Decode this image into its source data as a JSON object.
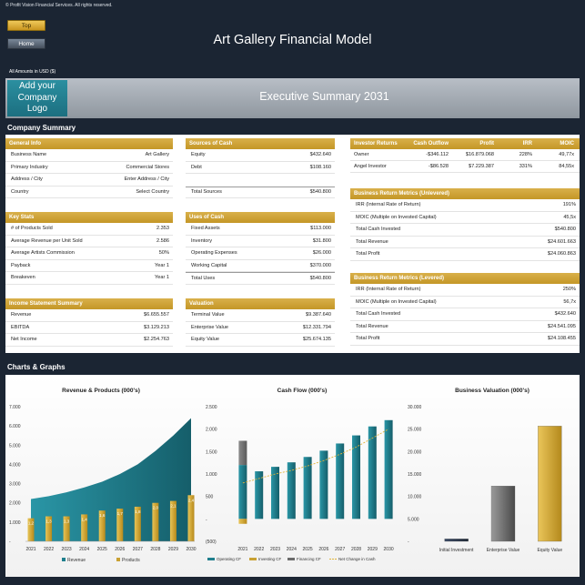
{
  "header": {
    "copyright": "© Profit Vision Financial Services. All rights reserved.",
    "top_button": "Top",
    "home_button": "Home",
    "title": "Art Gallery Financial Model",
    "amounts_note": "All Amounts in  USD ($)"
  },
  "banner": {
    "logo_text": "Add your Company Logo",
    "title": "Executive Summary 2031"
  },
  "sections": {
    "company_summary": "Company Summary",
    "charts": "Charts & Graphs"
  },
  "general_info": {
    "title": "General Info",
    "rows": [
      {
        "label": "Business Name",
        "value": "Art Gallery"
      },
      {
        "label": "Primary Industry",
        "value": "Commercial Stores"
      },
      {
        "label": "Address / City",
        "value": "Enter Address / City"
      },
      {
        "label": "Country",
        "value": "Select Country"
      }
    ]
  },
  "key_stats": {
    "title": "Key Stats",
    "rows": [
      {
        "label": "# of Products Sold",
        "value": "2.353"
      },
      {
        "label": "Average Revenue per Unit Sold",
        "value": "2.586"
      },
      {
        "label": "Average Artists Commission",
        "value": "50%"
      },
      {
        "label": "Payback",
        "value": "Year 1"
      },
      {
        "label": "Breakeven",
        "value": "Year 1"
      }
    ]
  },
  "income_statement": {
    "title": "Income Statement Summary",
    "rows": [
      {
        "label": "Revenue",
        "value": "$6.655.557"
      },
      {
        "label": "EBITDA",
        "value": "$3.129.213"
      },
      {
        "label": "Net Income",
        "value": "$2.254.763"
      }
    ]
  },
  "sources_of_cash": {
    "title": "Sources of Cash",
    "rows": [
      {
        "label": "Equity",
        "value": "$432.640"
      },
      {
        "label": "Debt",
        "value": "$108.160"
      }
    ],
    "total": {
      "label": "Total Sources",
      "value": "$540.800"
    }
  },
  "uses_of_cash": {
    "title": "Uses of Cash",
    "rows": [
      {
        "label": "Fixed Assets",
        "value": "$113.000"
      },
      {
        "label": "Inventory",
        "value": "$31.800"
      },
      {
        "label": "Operating Expenses",
        "value": "$26.000"
      },
      {
        "label": "Working Capital",
        "value": "$370.000"
      }
    ],
    "total": {
      "label": "Total Uses",
      "value": "$540.800"
    }
  },
  "valuation": {
    "title": "Valuation",
    "rows": [
      {
        "label": "Terminal Value",
        "value": "$9.387.640"
      },
      {
        "label": "Enterprise Value",
        "value": "$12.331.794"
      },
      {
        "label": "Equity Value",
        "value": "$25.674.135"
      }
    ]
  },
  "investor_returns": {
    "headers": [
      "Investor Returns",
      "Cash Outflow",
      "Profit",
      "IRR",
      "MOIC"
    ],
    "rows": [
      [
        "Owner",
        "-$346.112",
        "$16.879.068",
        "228%",
        "49,77x"
      ],
      [
        "Angel Investor",
        "-$86.528",
        "$7.229.387",
        "331%",
        "84,55x"
      ]
    ]
  },
  "return_unlevered": {
    "title": "Business Return Metrics (Unlevered)",
    "rows": [
      {
        "label": "IRR (Internal Rate of Return)",
        "value": "191%"
      },
      {
        "label": "MOIC (Multiple on Invested Capital)",
        "value": "45,5x"
      },
      {
        "label": "Total Cash Invested",
        "value": "$540.800"
      },
      {
        "label": "Total Revenue",
        "value": "$24.601.663"
      },
      {
        "label": "Total Profit",
        "value": "$24.060.863"
      }
    ]
  },
  "return_levered": {
    "title": "Business Return Metrics (Levered)",
    "rows": [
      {
        "label": "IRR (Internal Rate of Return)",
        "value": "250%"
      },
      {
        "label": "MOIC (Multiple on Invested Capital)",
        "value": "56,7x"
      },
      {
        "label": "Total Cash Invested",
        "value": "$432.640"
      },
      {
        "label": "Total Revenue",
        "value": "$24.541.095"
      },
      {
        "label": "Total Profit",
        "value": "$24.108.455"
      }
    ]
  },
  "colors": {
    "gold": "#c9a133",
    "teal": "#1f7f8d",
    "navy": "#1b2533",
    "grey": "#6b6b6b"
  },
  "chart_data": [
    {
      "type": "area",
      "title": "Revenue & Products (000's)",
      "categories": [
        "2021",
        "2022",
        "2023",
        "2024",
        "2025",
        "2026",
        "2027",
        "2028",
        "2029",
        "2030"
      ],
      "ylim": [
        0,
        7000
      ],
      "yticks": [
        "-",
        "1.000",
        "2.000",
        "3.000",
        "4.000",
        "5.000",
        "6.000",
        "7.000"
      ],
      "series": [
        {
          "name": "Revenue",
          "values": [
            2200,
            2350,
            2550,
            2800,
            3100,
            3500,
            4000,
            4700,
            5500,
            6400
          ]
        },
        {
          "name": "Products",
          "values": [
            1.2,
            1.3,
            1.3,
            1.4,
            1.6,
            1.7,
            1.8,
            2.0,
            2.1,
            2.4
          ]
        }
      ],
      "bar_labels": [
        "1,2",
        "1,3",
        "1,3",
        "1,4",
        "1,6",
        "1,7",
        "1,8",
        "2,0",
        "2,1",
        "2,4"
      ]
    },
    {
      "type": "bar",
      "title": "Cash Flow (000's)",
      "categories": [
        "2021",
        "2022",
        "2023",
        "2024",
        "2025",
        "2026",
        "2027",
        "2028",
        "2029",
        "2030"
      ],
      "ylim": [
        -500,
        2500
      ],
      "yticks": [
        "(500)",
        "-",
        "500",
        "1.000",
        "1.500",
        "2.000",
        "2.500"
      ],
      "series": [
        {
          "name": "Operating CF",
          "values": [
            1200,
            1060,
            1160,
            1260,
            1380,
            1520,
            1680,
            1860,
            2060,
            2200
          ]
        },
        {
          "name": "Investing CF",
          "values": [
            -110,
            0,
            0,
            0,
            0,
            0,
            0,
            0,
            0,
            0
          ]
        },
        {
          "name": "Financing CF",
          "values": [
            540,
            0,
            0,
            0,
            0,
            0,
            0,
            0,
            0,
            0
          ]
        },
        {
          "name": "Net Change in Cash",
          "values": [
            800,
            900,
            1000,
            1080,
            1180,
            1300,
            1440,
            1600,
            1800,
            2000
          ]
        }
      ]
    },
    {
      "type": "bar",
      "title": "Business Valuation (000's)",
      "categories": [
        "Initial Investment",
        "Enterprise Value",
        "Equity Value"
      ],
      "values": [
        540,
        12332,
        25674
      ],
      "ylim": [
        0,
        30000
      ],
      "yticks": [
        "-",
        "5.000",
        "10.000",
        "15.000",
        "20.000",
        "25.000",
        "30.000"
      ]
    }
  ]
}
